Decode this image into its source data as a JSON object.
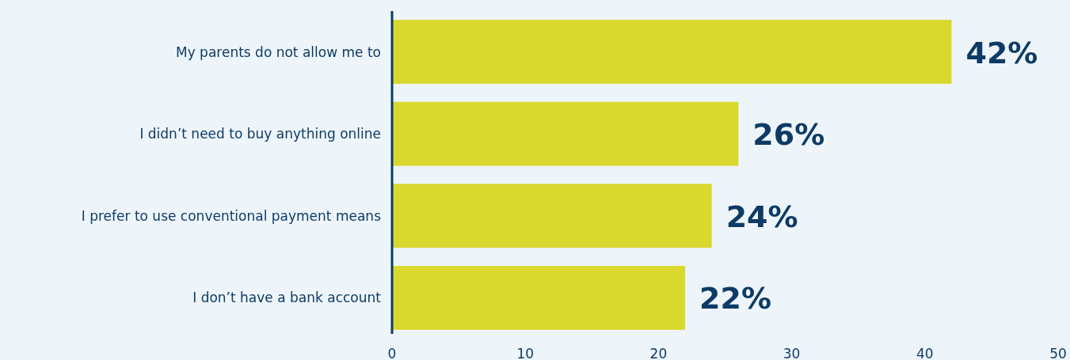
{
  "chart_data": {
    "type": "bar",
    "orientation": "horizontal",
    "categories": [
      "My parents do not allow me to",
      "I didn’t need to buy anything online",
      "I prefer to use conventional payment means",
      "I don’t have a bank account"
    ],
    "values": [
      42,
      26,
      24,
      22
    ],
    "value_labels": [
      "42%",
      "26%",
      "24%",
      "22%"
    ],
    "color": "#d8d82e",
    "xlim": [
      0,
      50
    ],
    "xticks": [
      0,
      10,
      20,
      30,
      40,
      50
    ],
    "grid": false
  }
}
